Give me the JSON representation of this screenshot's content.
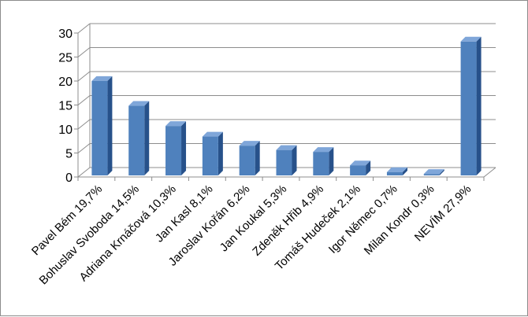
{
  "chart_data": {
    "type": "bar",
    "categories": [
      "Pavel Bém 19,7%",
      "Bohuslav Svoboda 14,5%",
      "Adriana Krnáčová 10,3%",
      "Jan Kasl 8,1%",
      "Jaroslav Kořán 6,2%",
      "Jan Koukal 5,3%",
      "Zdeněk Hřib 4,9%",
      "Tomáš Hudeček 2,1%",
      "Igor Němec 0,7%",
      "Milan Kondr 0,3%",
      "NEVÍM 27,9%"
    ],
    "values": [
      19.7,
      14.5,
      10.3,
      8.1,
      6.2,
      5.3,
      4.9,
      2.1,
      0.7,
      0.3,
      27.9
    ],
    "ylim": [
      0,
      30
    ],
    "yticks": [
      0,
      5,
      10,
      15,
      20,
      25,
      30
    ],
    "title": "",
    "xlabel": "",
    "ylabel": "",
    "grid": true,
    "legend": "none",
    "style": "3d-column",
    "colors": {
      "front": "#4f81bd",
      "side": "#27518a",
      "top": "#7fa6d9",
      "grid": "#8c8c8c"
    }
  }
}
